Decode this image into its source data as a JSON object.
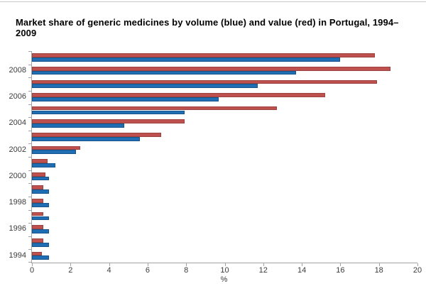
{
  "title": "Market share of generic medicines by volume (blue) and value (red) in Portugal, 1994–2009",
  "chart_data": {
    "type": "bar",
    "orientation": "horizontal",
    "categories": [
      1994,
      1995,
      1996,
      1997,
      1998,
      1999,
      2000,
      2001,
      2002,
      2003,
      2004,
      2005,
      2006,
      2007,
      2008,
      2009
    ],
    "series": [
      {
        "name": "value",
        "position_in_group": "top",
        "color": "#be514e",
        "values": [
          0.5,
          0.6,
          0.6,
          0.6,
          0.6,
          0.6,
          0.7,
          0.8,
          2.5,
          6.7,
          7.9,
          12.7,
          15.2,
          17.9,
          18.6,
          17.8
        ]
      },
      {
        "name": "volume",
        "position_in_group": "bottom",
        "color": "#1f6db3",
        "values": [
          0.9,
          0.9,
          0.9,
          0.9,
          0.9,
          0.9,
          0.9,
          1.2,
          2.3,
          5.6,
          4.8,
          7.9,
          9.7,
          11.7,
          13.7,
          16.0
        ]
      }
    ],
    "xlabel": "%",
    "xlim": [
      0,
      20
    ],
    "xtick_labels": [
      "0",
      "2",
      "4",
      "6",
      "8",
      "10",
      "12",
      "14",
      "16",
      "18",
      "20"
    ],
    "xtick_values": [
      0,
      2,
      4,
      6,
      8,
      10,
      12,
      14,
      16,
      18,
      20
    ],
    "ytick_labels": [
      "2008",
      "2006",
      "2004",
      "2002",
      "2000",
      "1998",
      "1996",
      "1994"
    ],
    "grid": false,
    "legend": "none"
  },
  "colors": {
    "value_red": "#be514e",
    "volume_blue": "#1f6db3",
    "axis_gray": "#a3a3a3",
    "tick_text": "#3c3c3c"
  }
}
